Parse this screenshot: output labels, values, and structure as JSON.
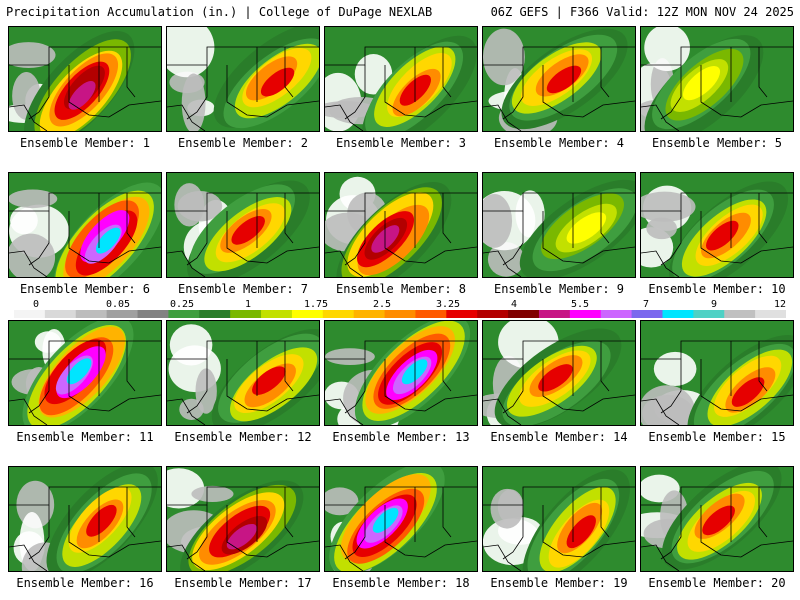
{
  "header": {
    "left": "Precipitation Accumulation (in.) | College of DuPage NEXLAB",
    "right": "06Z GEFS | F366 Valid: 12Z MON NOV 24 2025"
  },
  "colorbar": {
    "labels": [
      "0",
      "0.05",
      "0.25",
      "1",
      "1.75",
      "2.5",
      "3.25",
      "4",
      "5.5",
      "7",
      "9",
      "12"
    ],
    "colors": [
      "#f4f4f4",
      "#d9d9d9",
      "#bdbdbd",
      "#a0a0a0",
      "#828282",
      "#3f9e3f",
      "#2a7d2a",
      "#7ab800",
      "#c2e000",
      "#ffff00",
      "#ffd700",
      "#ffb300",
      "#ff8c00",
      "#ff5a00",
      "#e60000",
      "#b30000",
      "#800000",
      "#c71585",
      "#ff00ff",
      "#cc66ff",
      "#7b68ee",
      "#00e5ff",
      "#4fd1c5",
      "#c0c0c0",
      "#e0e0e0"
    ]
  },
  "panels": [
    {
      "label": "Ensemble Member: 1",
      "intensity": "high"
    },
    {
      "label": "Ensemble Member: 2",
      "intensity": "mid"
    },
    {
      "label": "Ensemble Member: 3",
      "intensity": "mid"
    },
    {
      "label": "Ensemble Member: 4",
      "intensity": "mid"
    },
    {
      "label": "Ensemble Member: 5",
      "intensity": "low"
    },
    {
      "label": "Ensemble Member: 6",
      "intensity": "veryhigh"
    },
    {
      "label": "Ensemble Member: 7",
      "intensity": "mid"
    },
    {
      "label": "Ensemble Member: 8",
      "intensity": "high"
    },
    {
      "label": "Ensemble Member: 9",
      "intensity": "low"
    },
    {
      "label": "Ensemble Member: 10",
      "intensity": "mid"
    },
    {
      "label": "Ensemble Member: 11",
      "intensity": "veryhigh"
    },
    {
      "label": "Ensemble Member: 12",
      "intensity": "mid"
    },
    {
      "label": "Ensemble Member: 13",
      "intensity": "veryhigh"
    },
    {
      "label": "Ensemble Member: 14",
      "intensity": "mid"
    },
    {
      "label": "Ensemble Member: 15",
      "intensity": "mid"
    },
    {
      "label": "Ensemble Member: 16",
      "intensity": "mid"
    },
    {
      "label": "Ensemble Member: 17",
      "intensity": "high"
    },
    {
      "label": "Ensemble Member: 18",
      "intensity": "veryhigh"
    },
    {
      "label": "Ensemble Member: 19",
      "intensity": "mid"
    },
    {
      "label": "Ensemble Member: 20",
      "intensity": "mid"
    }
  ]
}
